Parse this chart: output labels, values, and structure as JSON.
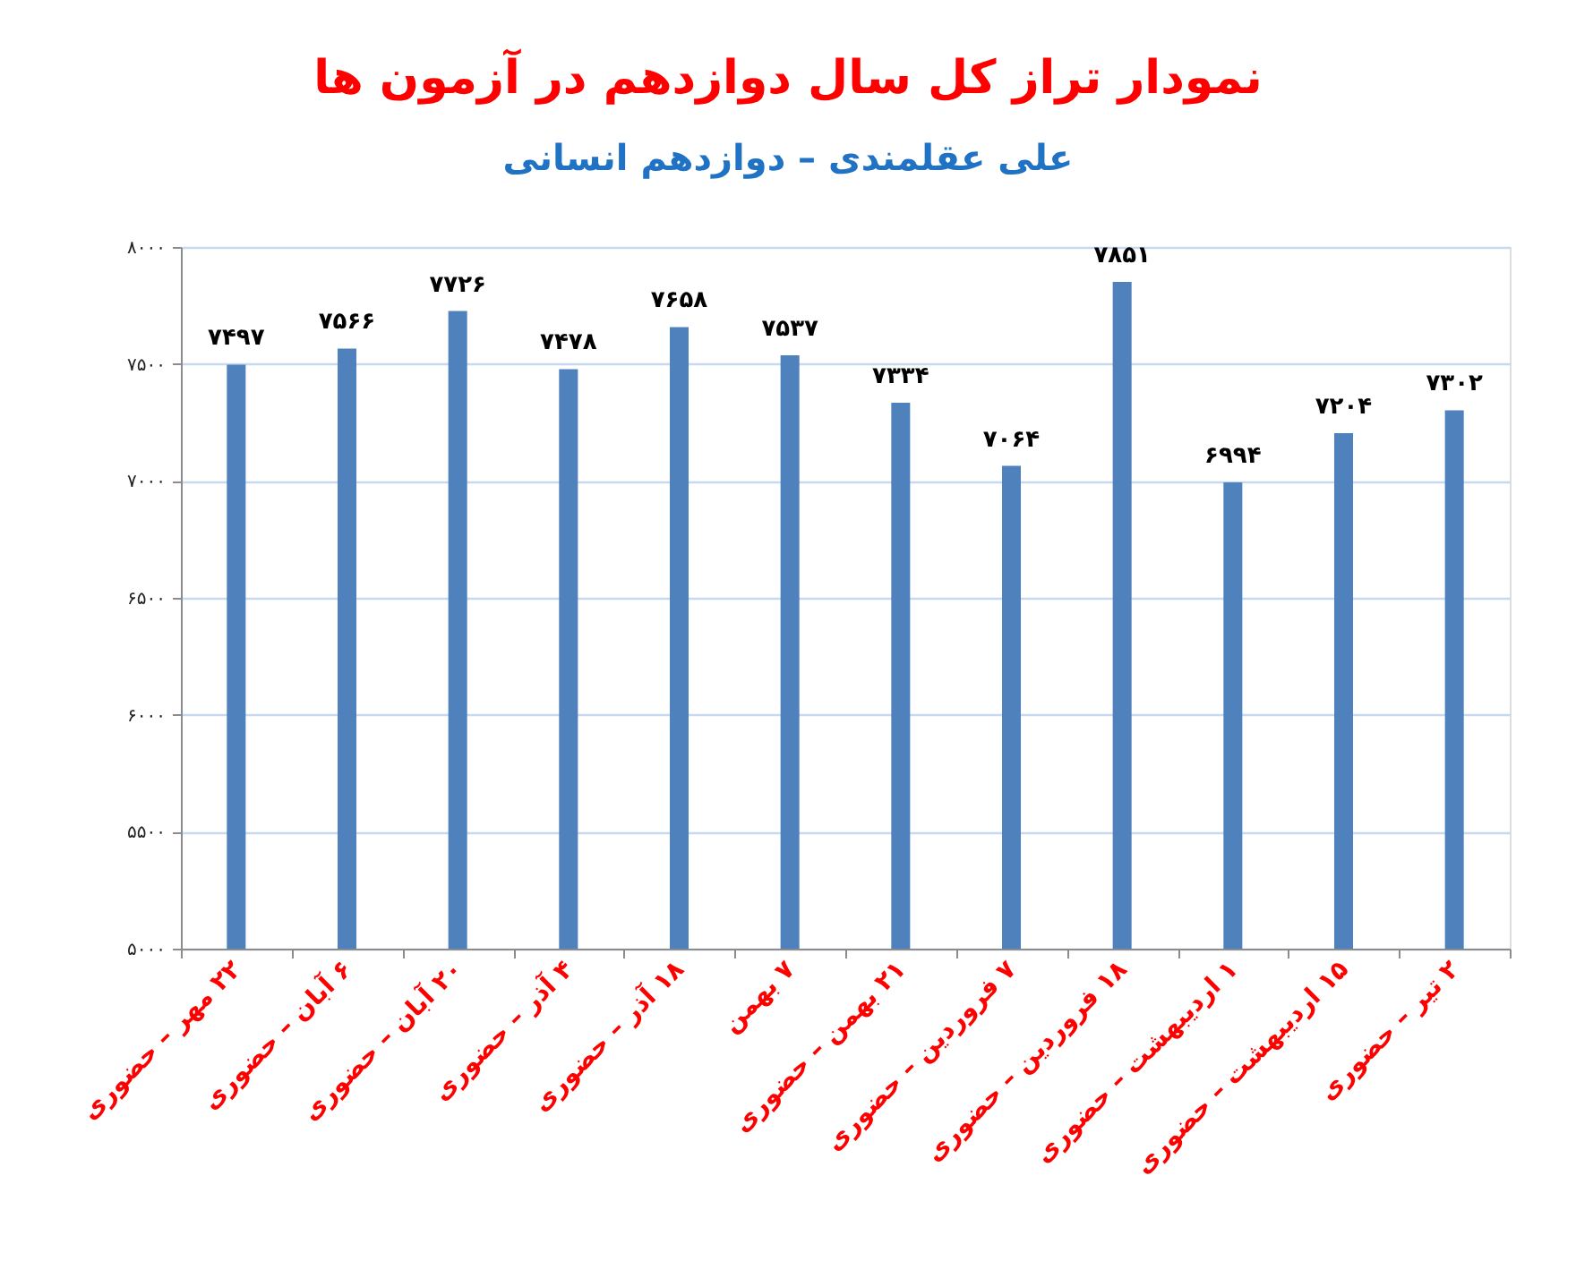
{
  "chart_data": {
    "type": "bar",
    "title": "نمودار تراز کل سال دوازدهم در آزمون ها",
    "subtitle": "علی عقلمندی – دوازدهم انسانی",
    "categories": [
      "۲۲ مهر – حضوری",
      "۶ آبان – حضوری",
      "۲۰ آبان – حضوری",
      "۴ آذر – حضوری",
      "۱۸ آذر – حضوری",
      "۷ بهمن",
      "۲۱ بهمن – حضوری",
      "۷ فروردین – حضوری",
      "۱۸ فروردین – حضوری",
      "۱ اردیبهشت – حضوری",
      "۱۵ اردیبهشت – حضوری",
      "۲ تیر – حضوری"
    ],
    "values": [
      7497,
      7566,
      7726,
      7478,
      7658,
      7537,
      7334,
      7064,
      7851,
      6994,
      7204,
      7302
    ],
    "value_labels": [
      "۷۴۹۷",
      "۷۵۶۶",
      "۷۷۲۶",
      "۷۴۷۸",
      "۷۶۵۸",
      "۷۵۳۷",
      "۷۳۳۴",
      "۷۰۶۴",
      "۷۸۵۱",
      "۶۹۹۴",
      "۷۲۰۴",
      "۷۳۰۲"
    ],
    "color": "#4f81bd",
    "ylim": [
      5000,
      8000
    ],
    "yticks": [
      {
        "value": 5000,
        "label": "۵۰۰۰"
      },
      {
        "value": 5500,
        "label": "۵۵۰۰"
      },
      {
        "value": 6000,
        "label": "۶۰۰۰"
      },
      {
        "value": 6500,
        "label": "۶۵۰۰"
      },
      {
        "value": 7000,
        "label": "۷۰۰۰"
      },
      {
        "value": 7500,
        "label": "۷۵۰۰"
      },
      {
        "value": 8000,
        "label": "۸۰۰۰"
      }
    ],
    "grid": "y"
  }
}
